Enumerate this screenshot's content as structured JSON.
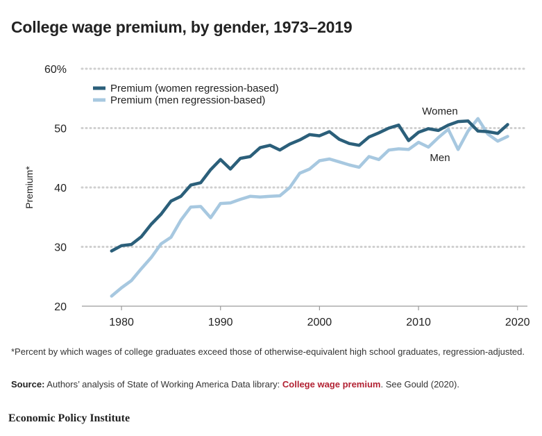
{
  "title": "College wage premium, by gender, 1973–2019",
  "chart_data": {
    "type": "line",
    "ylabel": "Premium*",
    "xlabel": "",
    "xlim": [
      1976,
      2021
    ],
    "ylim": [
      20,
      60
    ],
    "x_ticks": [
      "1980",
      "1990",
      "2000",
      "2010",
      "2020"
    ],
    "x_tick_values": [
      1980,
      1990,
      2000,
      2010,
      2020
    ],
    "y_ticks": [
      "20",
      "30",
      "40",
      "50",
      "60%"
    ],
    "y_tick_values": [
      20,
      30,
      40,
      50,
      60
    ],
    "grid": "horizontal dotted",
    "legend_position": "top-left",
    "x": [
      1979,
      1980,
      1981,
      1982,
      1983,
      1984,
      1985,
      1986,
      1987,
      1988,
      1989,
      1990,
      1991,
      1992,
      1993,
      1994,
      1995,
      1996,
      1997,
      1998,
      1999,
      2000,
      2001,
      2002,
      2003,
      2004,
      2005,
      2006,
      2007,
      2008,
      2009,
      2010,
      2011,
      2012,
      2013,
      2014,
      2015,
      2016,
      2017,
      2018,
      2019
    ],
    "series": [
      {
        "name": "Premium (women regression-based)",
        "color": "#2b5f7a",
        "annotation": "Women",
        "values": [
          29.3,
          30.2,
          30.4,
          31.7,
          33.8,
          35.5,
          37.7,
          38.5,
          40.4,
          40.8,
          43.0,
          44.7,
          43.1,
          44.9,
          45.2,
          46.7,
          47.1,
          46.3,
          47.3,
          48.0,
          48.9,
          48.7,
          49.4,
          48.1,
          47.4,
          47.1,
          48.5,
          49.2,
          50.0,
          50.5,
          47.9,
          49.3,
          49.9,
          49.6,
          50.5,
          51.1,
          51.2,
          49.5,
          49.4,
          49.1,
          50.6
        ]
      },
      {
        "name": "Premium (men regression-based)",
        "color": "#a7c8e0",
        "annotation": "Men",
        "values": [
          21.7,
          23.1,
          24.3,
          26.3,
          28.2,
          30.5,
          31.6,
          34.5,
          36.7,
          36.8,
          34.9,
          37.3,
          37.4,
          38.0,
          38.5,
          38.4,
          38.5,
          38.6,
          40.0,
          42.4,
          43.1,
          44.5,
          44.8,
          44.3,
          43.8,
          43.4,
          45.2,
          44.7,
          46.3,
          46.5,
          46.4,
          47.6,
          46.8,
          48.4,
          49.8,
          46.4,
          49.5,
          51.6,
          49.0,
          47.8,
          48.6
        ]
      }
    ]
  },
  "note": "*Percent by which wages of college graduates exceed those of otherwise-equivalent high school graduates, regression-adjusted.",
  "source": {
    "label": "Source:",
    "text_before": " Authors’ analysis of State of Working America Data library: ",
    "link": "College wage premium",
    "text_after": ". See Gould (2020)."
  },
  "footer": "Economic Policy Institute"
}
